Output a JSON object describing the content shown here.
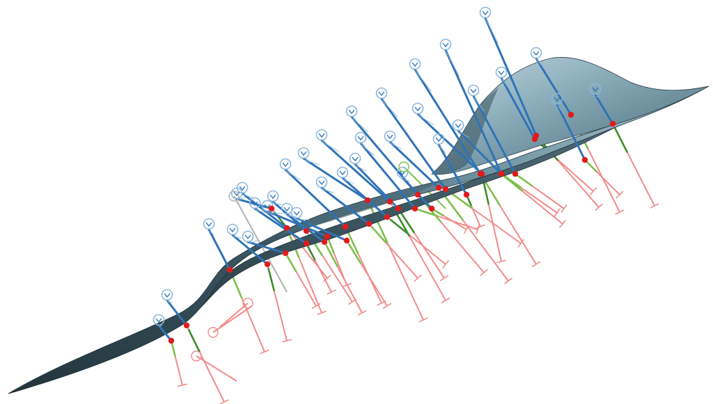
{
  "colors": {
    "background": "#ffffff",
    "surface_dark": "#2f4650",
    "surface_mid": "#5a7f8d",
    "surface_light": "#a9c6d1",
    "surface_edge": "#1f2f36",
    "probe_blue": "#2f73b7",
    "probe_blue_light": "#8db8de",
    "probe_green": "#7cc04a",
    "probe_green_dark": "#3d8b2c",
    "probe_red": "#f28a8a",
    "probe_gray": "#b0b0b0",
    "hit_marker": "#e31a1c"
  },
  "scene": {
    "surface": {
      "icon": "mesh-surface"
    },
    "probe_icon": "measurement-needle",
    "hit_icon": "intersection-marker"
  }
}
